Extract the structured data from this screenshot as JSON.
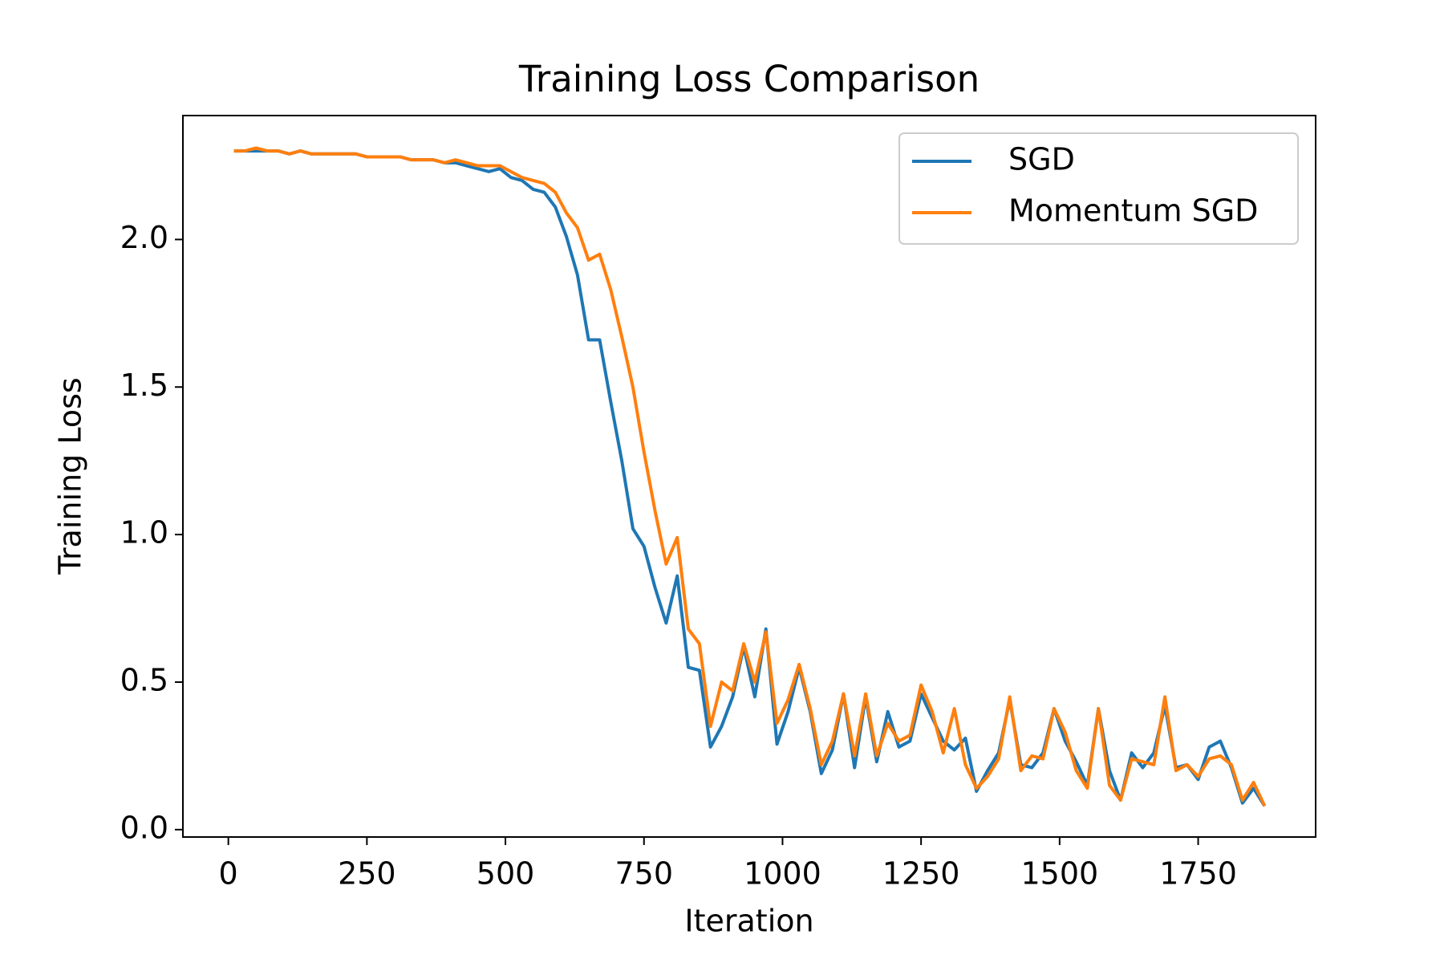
{
  "chart_data": {
    "type": "line",
    "title": "Training Loss Comparison",
    "xlabel": "Iteration",
    "ylabel": "Training Loss",
    "x": [
      10,
      30,
      50,
      70,
      90,
      110,
      130,
      150,
      170,
      190,
      210,
      230,
      250,
      270,
      290,
      310,
      330,
      350,
      370,
      390,
      410,
      430,
      450,
      470,
      490,
      510,
      530,
      550,
      570,
      590,
      610,
      630,
      650,
      670,
      690,
      710,
      730,
      750,
      770,
      790,
      810,
      830,
      850,
      870,
      890,
      910,
      930,
      950,
      970,
      990,
      1010,
      1030,
      1050,
      1070,
      1090,
      1110,
      1130,
      1150,
      1170,
      1190,
      1210,
      1230,
      1250,
      1270,
      1290,
      1310,
      1330,
      1350,
      1370,
      1390,
      1410,
      1430,
      1450,
      1470,
      1490,
      1510,
      1530,
      1550,
      1570,
      1590,
      1610,
      1630,
      1650,
      1670,
      1690,
      1710,
      1730,
      1750,
      1770,
      1790,
      1810,
      1830,
      1850,
      1870
    ],
    "series": [
      {
        "name": "SGD",
        "color": "#1f77b4",
        "values": [
          2.3,
          2.3,
          2.3,
          2.3,
          2.3,
          2.29,
          2.3,
          2.29,
          2.29,
          2.29,
          2.29,
          2.29,
          2.28,
          2.28,
          2.28,
          2.28,
          2.27,
          2.27,
          2.27,
          2.26,
          2.26,
          2.25,
          2.24,
          2.23,
          2.24,
          2.21,
          2.2,
          2.17,
          2.16,
          2.11,
          2.01,
          1.88,
          1.66,
          1.66,
          1.45,
          1.25,
          1.02,
          0.96,
          0.82,
          0.7,
          0.86,
          0.55,
          0.54,
          0.28,
          0.35,
          0.45,
          0.62,
          0.45,
          0.68,
          0.29,
          0.4,
          0.55,
          0.4,
          0.19,
          0.27,
          0.46,
          0.21,
          0.45,
          0.23,
          0.4,
          0.28,
          0.3,
          0.46,
          0.38,
          0.3,
          0.27,
          0.31,
          0.13,
          0.2,
          0.26,
          0.44,
          0.22,
          0.21,
          0.26,
          0.41,
          0.3,
          0.23,
          0.15,
          0.41,
          0.2,
          0.1,
          0.26,
          0.21,
          0.26,
          0.42,
          0.21,
          0.22,
          0.17,
          0.28,
          0.3,
          0.21,
          0.09,
          0.14,
          0.08
        ]
      },
      {
        "name": "Momentum SGD",
        "color": "#ff7f0e",
        "values": [
          2.3,
          2.3,
          2.31,
          2.3,
          2.3,
          2.29,
          2.3,
          2.29,
          2.29,
          2.29,
          2.29,
          2.29,
          2.28,
          2.28,
          2.28,
          2.28,
          2.27,
          2.27,
          2.27,
          2.26,
          2.27,
          2.26,
          2.25,
          2.25,
          2.25,
          2.23,
          2.21,
          2.2,
          2.19,
          2.16,
          2.09,
          2.04,
          1.93,
          1.95,
          1.83,
          1.67,
          1.5,
          1.28,
          1.08,
          0.9,
          0.99,
          0.68,
          0.63,
          0.35,
          0.5,
          0.47,
          0.63,
          0.5,
          0.67,
          0.36,
          0.44,
          0.56,
          0.41,
          0.22,
          0.3,
          0.46,
          0.25,
          0.46,
          0.25,
          0.36,
          0.3,
          0.32,
          0.49,
          0.4,
          0.26,
          0.41,
          0.22,
          0.14,
          0.18,
          0.24,
          0.45,
          0.2,
          0.25,
          0.24,
          0.41,
          0.33,
          0.2,
          0.14,
          0.41,
          0.15,
          0.1,
          0.24,
          0.23,
          0.22,
          0.45,
          0.2,
          0.22,
          0.18,
          0.24,
          0.25,
          0.22,
          0.1,
          0.16,
          0.08
        ]
      }
    ],
    "xlim": [
      -82,
      1962
    ],
    "ylim": [
      -0.025,
      2.42
    ],
    "xticks": [
      0,
      250,
      500,
      750,
      1000,
      1250,
      1500,
      1750
    ],
    "yticks": [
      {
        "value": 0,
        "label": "0.0"
      },
      0.5,
      {
        "value": 1,
        "label": "1.0"
      },
      1.5,
      {
        "value": 2,
        "label": "2.0"
      }
    ],
    "legend": "upper right",
    "grid": false
  }
}
